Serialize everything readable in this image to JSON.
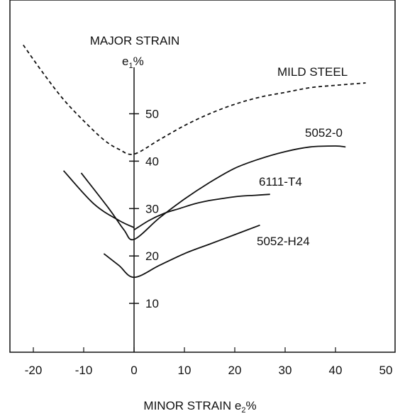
{
  "chart_data": {
    "type": "line",
    "title": "",
    "xlabel": "MINOR STRAIN e",
    "xlabel_sub": "2",
    "xlabel_unit": "%",
    "ylabel_line1": "MAJOR STRAIN",
    "ylabel_line2": "e",
    "ylabel_sub": "1",
    "ylabel_unit": "%",
    "xlim": [
      -25,
      50
    ],
    "ylim": [
      0,
      65
    ],
    "x_ticks": [
      -20,
      -10,
      0,
      10,
      20,
      30,
      40,
      50
    ],
    "y_ticks": [
      10,
      20,
      30,
      40,
      50
    ],
    "grid": false,
    "legend": "inline labels",
    "series": [
      {
        "name": "MILD STEEL",
        "style": "dashed",
        "x": [
          -22,
          -18,
          -14,
          -10,
          -6,
          -3,
          0,
          5,
          10,
          15,
          20,
          25,
          30,
          35,
          40,
          46
        ],
        "y": [
          64.5,
          58.5,
          53,
          48.5,
          44.5,
          42.5,
          41.5,
          44.5,
          47.5,
          50,
          52,
          53.5,
          54.5,
          55.5,
          56,
          56.5
        ]
      },
      {
        "name": "5052-0",
        "style": "solid",
        "x": [
          -10.5,
          -5,
          -2,
          0,
          5,
          10,
          15,
          20,
          25,
          30,
          35,
          40,
          42
        ],
        "y": [
          37.5,
          30,
          25.5,
          23.5,
          28,
          32,
          35.5,
          38.5,
          40.5,
          42,
          43,
          43.2,
          43
        ],
        "tail": [
          [
            -14,
            38
          ],
          [
            -8,
            31
          ],
          [
            -3,
            27.5
          ],
          [
            0,
            26
          ]
        ]
      },
      {
        "name": "6111-T4",
        "style": "solid",
        "x": [
          0,
          3,
          6,
          9,
          12,
          15,
          18,
          21,
          24,
          27
        ],
        "y": [
          25.5,
          27.5,
          29,
          30,
          31,
          31.7,
          32.2,
          32.6,
          32.8,
          33
        ]
      },
      {
        "name": "5052-H24",
        "style": "solid",
        "x": [
          -6,
          -3,
          0,
          5,
          10,
          15,
          20,
          25
        ],
        "y": [
          20.5,
          18,
          15.5,
          18,
          20.5,
          22.5,
          24.5,
          26.5
        ]
      }
    ],
    "label_texts": {
      "mild_steel": "MILD STEEL",
      "al_5052_0": "5052-0",
      "al_6111_t4": "6111-T4",
      "al_5052_h24": "5052-H24"
    },
    "colors": {
      "line": "#111111",
      "background": "#ffffff"
    }
  }
}
